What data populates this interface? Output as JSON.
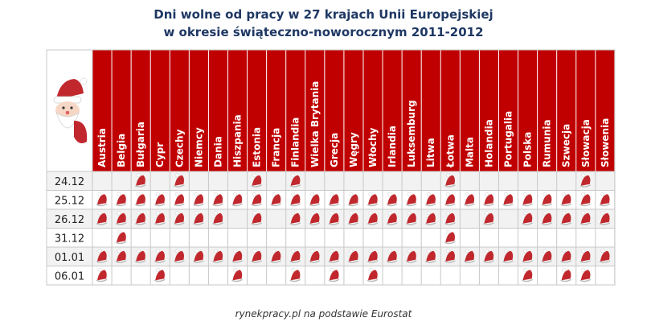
{
  "title_line1": "Dni wolne od pracy w 27 krajach Unii Europejskiej",
  "title_line2": "w okresie świąteczno-noworocznym 2011-2012",
  "source": "rynekpracy.pl na podstawie Eurostat",
  "colors": {
    "header_red": "#c00000",
    "row_alt": "#f2f2f2",
    "line": "#c8c8c8",
    "title": "#1f3864",
    "santa_red": "#c0282d"
  },
  "icon": "santa-claus-icon",
  "chart_data": {
    "type": "table",
    "countries": [
      "Austria",
      "Belgia",
      "Bułgaria",
      "Cypr",
      "Czechy",
      "Niemcy",
      "Dania",
      "Hiszpania",
      "Estonia",
      "Francja",
      "Finlandia",
      "Wielka Brytania",
      "Grecja",
      "Węgry",
      "Włochy",
      "Irlandia",
      "Luksemburg",
      "Litwa",
      "Łotwa",
      "Malta",
      "Holandia",
      "Portugalia",
      "Polska",
      "Rumunia",
      "Szwecja",
      "Słowacja",
      "Słowenia"
    ],
    "dates": [
      "24.12",
      "25.12",
      "26.12",
      "31.12",
      "01.01",
      "06.01"
    ],
    "holidays": [
      [
        0,
        0,
        1,
        0,
        1,
        0,
        0,
        0,
        1,
        0,
        1,
        0,
        0,
        0,
        0,
        0,
        0,
        0,
        1,
        0,
        0,
        0,
        0,
        0,
        0,
        1,
        0
      ],
      [
        1,
        1,
        1,
        1,
        1,
        1,
        1,
        1,
        1,
        1,
        1,
        1,
        1,
        1,
        1,
        1,
        1,
        1,
        1,
        1,
        1,
        1,
        1,
        1,
        1,
        1,
        1
      ],
      [
        1,
        1,
        1,
        1,
        1,
        1,
        1,
        0,
        1,
        0,
        1,
        1,
        1,
        1,
        1,
        1,
        1,
        1,
        1,
        0,
        1,
        0,
        1,
        1,
        1,
        1,
        1
      ],
      [
        0,
        1,
        0,
        0,
        0,
        0,
        0,
        0,
        0,
        0,
        0,
        0,
        0,
        0,
        0,
        0,
        0,
        0,
        1,
        0,
        0,
        0,
        0,
        0,
        0,
        0,
        0
      ],
      [
        1,
        1,
        1,
        1,
        1,
        1,
        1,
        1,
        1,
        1,
        1,
        1,
        1,
        1,
        1,
        1,
        1,
        1,
        1,
        1,
        1,
        1,
        1,
        1,
        1,
        1,
        1
      ],
      [
        1,
        0,
        0,
        1,
        0,
        0,
        0,
        1,
        0,
        0,
        1,
        0,
        1,
        0,
        1,
        0,
        0,
        0,
        0,
        0,
        0,
        0,
        1,
        0,
        1,
        1,
        0
      ]
    ]
  }
}
